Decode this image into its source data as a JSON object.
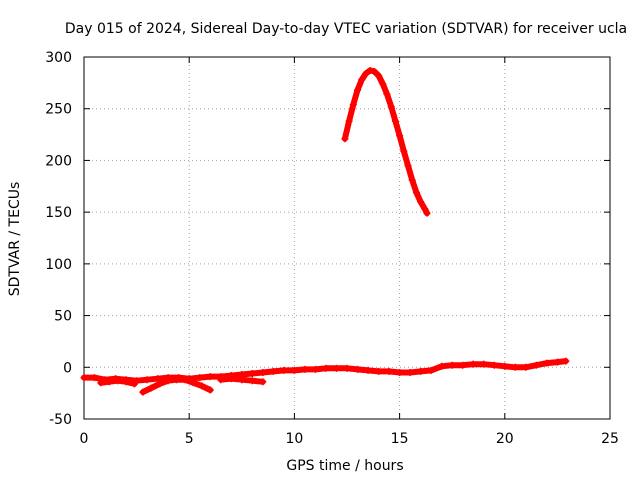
{
  "chart_data": {
    "type": "scatter",
    "title": "Day 015 of 2024, Sidereal Day-to-day VTEC variation (SDTVAR) for receiver ucla",
    "xlabel": "GPS time / hours",
    "ylabel": "SDTVAR / TECUs",
    "xlim": [
      0,
      25
    ],
    "ylim": [
      -50,
      300
    ],
    "xticks": [
      0,
      5,
      10,
      15,
      20,
      25
    ],
    "yticks": [
      -50,
      0,
      50,
      100,
      150,
      200,
      250,
      300
    ],
    "grid": true,
    "marker": "+",
    "series": [
      {
        "name": "SDTVAR",
        "color": "#ff0000",
        "segments": [
          {
            "x": [
              0.0,
              0.5,
              1.0,
              1.5,
              2.0,
              2.5,
              3.0,
              3.5,
              4.0,
              4.5,
              5.0,
              5.5,
              6.0,
              6.5,
              7.0,
              7.5,
              8.0,
              8.5,
              9.0,
              9.5,
              10.0,
              10.5,
              11.0,
              11.5,
              12.0,
              12.5,
              13.0,
              13.5,
              14.0,
              14.5,
              15.0,
              15.5,
              16.0,
              16.5,
              17.0,
              17.5,
              18.0,
              18.5,
              19.0,
              19.5,
              20.0,
              20.5,
              21.0,
              21.5,
              22.0,
              22.5,
              22.9
            ],
            "y": [
              -10,
              -10,
              -12,
              -11,
              -12,
              -13,
              -12,
              -11,
              -10,
              -10,
              -11,
              -10,
              -9,
              -9,
              -8,
              -7,
              -6,
              -5,
              -4,
              -3,
              -3,
              -2,
              -2,
              -1,
              -1,
              -1,
              -2,
              -3,
              -4,
              -4,
              -5,
              -5,
              -4,
              -3,
              1,
              2,
              2,
              3,
              3,
              2,
              1,
              0,
              0,
              2,
              4,
              5,
              6
            ]
          },
          {
            "x": [
              0.8,
              1.2,
              1.6,
              2.0,
              2.4
            ],
            "y": [
              -15,
              -14,
              -13,
              -14,
              -16
            ]
          },
          {
            "x": [
              2.8,
              3.2,
              3.6,
              4.0,
              4.4,
              4.8,
              5.2,
              5.6,
              6.0
            ],
            "y": [
              -24,
              -20,
              -16,
              -13,
              -12,
              -12,
              -15,
              -18,
              -22
            ]
          },
          {
            "x": [
              6.5,
              7.0,
              7.5,
              8.0,
              8.5
            ],
            "y": [
              -12,
              -11,
              -12,
              -13,
              -14
            ]
          },
          {
            "x": [
              12.4,
              12.6,
              12.8,
              13.0,
              13.2,
              13.4,
              13.6,
              13.8,
              14.0,
              14.2,
              14.4,
              14.6,
              14.8,
              15.0,
              15.2,
              15.4,
              15.6,
              15.8,
              16.0,
              16.2,
              16.3
            ],
            "y": [
              221,
              238,
              254,
              268,
              278,
              284,
              287,
              286,
              282,
              274,
              264,
              252,
              238,
              224,
              209,
              195,
              181,
              169,
              160,
              153,
              149
            ]
          }
        ]
      }
    ]
  }
}
